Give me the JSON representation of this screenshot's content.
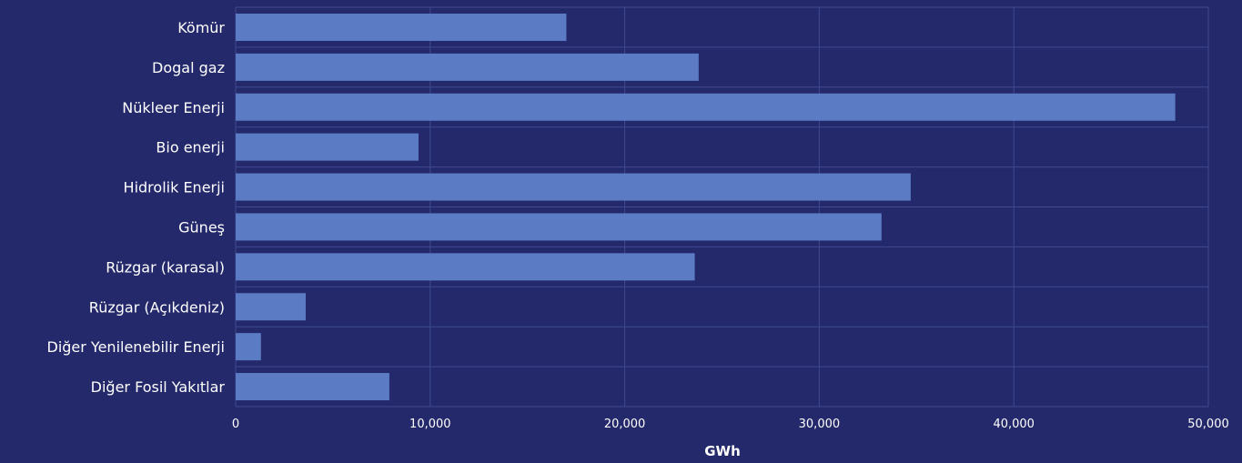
{
  "colors": {
    "background": "#24296b",
    "bar": "#5b7cc4",
    "grid": "#3f4a8f",
    "text": "#ffffff"
  },
  "chart_data": {
    "type": "bar",
    "orientation": "horizontal",
    "title": "",
    "xlabel": "GWh",
    "ylabel": "",
    "xlim": [
      0,
      50000
    ],
    "xticks": [
      0,
      10000,
      20000,
      30000,
      40000,
      50000
    ],
    "xtick_labels": [
      "0",
      "10,000",
      "20,000",
      "30,000",
      "40,000",
      "50,000"
    ],
    "grid": true,
    "categories": [
      "Kömür",
      "Dogal gaz",
      "Nükleer Enerji",
      "Bio enerji",
      "Hidrolik Enerji",
      "Güneş",
      "Rüzgar (karasal)",
      "Rüzgar (Açıkdeniz)",
      "Diğer Yenilenebilir Enerji",
      "Diğer Fosil Yakıtlar"
    ],
    "values": [
      17000,
      23800,
      48300,
      9400,
      34700,
      33200,
      23600,
      3600,
      1300,
      7900
    ]
  }
}
